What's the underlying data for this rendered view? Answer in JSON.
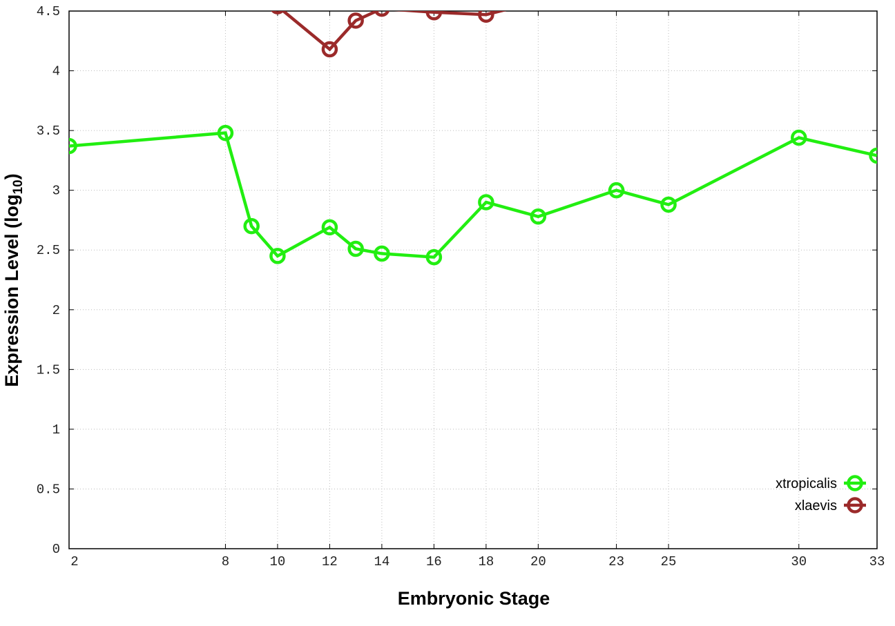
{
  "chart_data": {
    "type": "line",
    "title": "",
    "xlabel": "Embryonic Stage",
    "ylabel": "Expression Level (log",
    "ylabel_sub": "10",
    "ylabel_end": ")",
    "xlim": [
      2,
      33
    ],
    "ylim": [
      0,
      4.5
    ],
    "x_ticks": [
      2,
      8,
      10,
      12,
      14,
      16,
      18,
      20,
      23,
      25,
      30,
      33
    ],
    "y_ticks": [
      "0",
      "0.5",
      "1",
      "1.5",
      "2",
      "2.5",
      "3",
      "3.5",
      "4",
      "4.5"
    ],
    "grid": true,
    "legend_position": "bottom-right",
    "series": [
      {
        "name": "xtropicalis",
        "color": "#22ee11",
        "x": [
          2,
          8,
          9,
          10,
          12,
          13,
          14,
          16,
          18,
          20,
          23,
          25,
          30,
          33
        ],
        "y": [
          3.37,
          3.48,
          2.7,
          2.45,
          2.69,
          2.51,
          2.47,
          2.44,
          2.9,
          2.78,
          3.0,
          2.88,
          3.44,
          3.29
        ]
      },
      {
        "name": "xlaevis",
        "color": "#9b2a2a",
        "x": [
          10,
          12,
          13,
          14,
          16,
          18,
          20
        ],
        "y": [
          4.54,
          4.18,
          4.42,
          4.52,
          4.49,
          4.47,
          4.58
        ]
      }
    ]
  }
}
